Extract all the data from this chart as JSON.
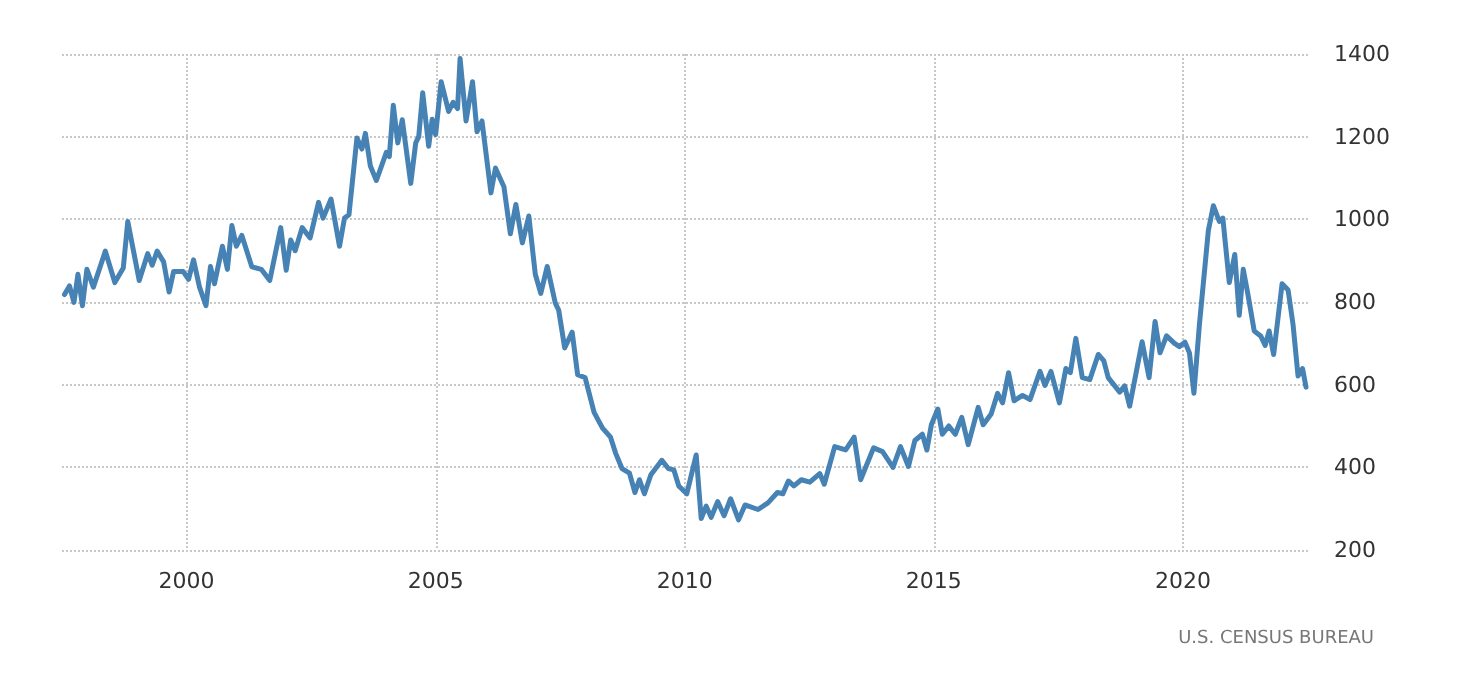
{
  "chart_data": {
    "type": "line",
    "annotations": [
      "U.S. CENSUS BUREAU"
    ],
    "xlim": [
      1997.5,
      2022.55
    ],
    "xticks": [
      2000,
      2005,
      2010,
      2015,
      2020
    ],
    "ylim": [
      200,
      1400
    ],
    "yticks": [
      200,
      400,
      600,
      800,
      1000,
      1200,
      1400
    ],
    "grid": true,
    "marker": "none",
    "line_style": "solid",
    "series": [
      {
        "color": "#4682b4",
        "x": [
          1997.55,
          1997.65,
          1997.74,
          1997.82,
          1997.91,
          1998.0,
          1998.13,
          1998.37,
          1998.56,
          1998.73,
          1998.82,
          1999.05,
          1999.22,
          1999.31,
          1999.41,
          1999.54,
          1999.65,
          1999.74,
          1999.93,
          2000.04,
          2000.14,
          2000.26,
          2000.39,
          2000.48,
          2000.56,
          2000.72,
          2000.82,
          2000.91,
          2001.0,
          2001.11,
          2001.31,
          2001.5,
          2001.67,
          2001.89,
          2002.0,
          2002.09,
          2002.18,
          2002.32,
          2002.48,
          2002.65,
          2002.74,
          2002.9,
          2003.07,
          2003.17,
          2003.26,
          2003.42,
          2003.52,
          2003.59,
          2003.69,
          2003.81,
          2004.01,
          2004.07,
          2004.15,
          2004.24,
          2004.33,
          2004.5,
          2004.6,
          2004.66,
          2004.74,
          2004.86,
          2004.93,
          2005.0,
          2005.11,
          2005.26,
          2005.35,
          2005.44,
          2005.49,
          2005.61,
          2005.74,
          2005.83,
          2005.93,
          2006.11,
          2006.2,
          2006.37,
          2006.5,
          2006.61,
          2006.74,
          2006.87,
          2007.0,
          2007.11,
          2007.24,
          2007.4,
          2007.47,
          2007.59,
          2007.74,
          2007.85,
          2008.0,
          2008.18,
          2008.35,
          2008.51,
          2008.61,
          2008.74,
          2008.89,
          2009.0,
          2009.09,
          2009.19,
          2009.32,
          2009.54,
          2009.67,
          2009.78,
          2009.88,
          2010.04,
          2010.23,
          2010.33,
          2010.43,
          2010.53,
          2010.66,
          2010.79,
          2010.92,
          2011.08,
          2011.21,
          2011.47,
          2011.67,
          2011.86,
          2011.97,
          2012.08,
          2012.19,
          2012.34,
          2012.51,
          2012.71,
          2012.8,
          2013.01,
          2013.23,
          2013.4,
          2013.53,
          2013.79,
          2013.97,
          2014.18,
          2014.33,
          2014.49,
          2014.62,
          2014.77,
          2014.86,
          2014.95,
          2015.08,
          2015.17,
          2015.3,
          2015.43,
          2015.56,
          2015.69,
          2015.89,
          2015.99,
          2016.15,
          2016.28,
          2016.38,
          2016.5,
          2016.61,
          2016.78,
          2016.93,
          2017.13,
          2017.23,
          2017.35,
          2017.52,
          2017.65,
          2017.74,
          2017.85,
          2017.98,
          2018.13,
          2018.3,
          2018.41,
          2018.5,
          2018.73,
          2018.83,
          2018.93,
          2019.18,
          2019.32,
          2019.44,
          2019.54,
          2019.67,
          2019.83,
          2019.93,
          2020.04,
          2020.13,
          2020.22,
          2020.33,
          2020.51,
          2020.61,
          2020.73,
          2020.8,
          2020.93,
          2021.04,
          2021.13,
          2021.21,
          2021.3,
          2021.43,
          2021.56,
          2021.65,
          2021.73,
          2021.82,
          2021.99,
          2022.11,
          2022.21,
          2022.31,
          2022.4,
          2022.47
        ],
        "values": [
          818,
          839,
          799,
          867,
          791,
          879,
          836,
          923,
          847,
          882,
          995,
          852,
          917,
          889,
          923,
          897,
          824,
          874,
          874,
          855,
          902,
          836,
          791,
          886,
          844,
          935,
          879,
          985,
          935,
          961,
          885,
          879,
          852,
          980,
          877,
          950,
          924,
          980,
          955,
          1041,
          1003,
          1049,
          935,
          1003,
          1011,
          1197,
          1170,
          1208,
          1129,
          1094,
          1162,
          1152,
          1276,
          1185,
          1241,
          1087,
          1185,
          1200,
          1306,
          1177,
          1242,
          1205,
          1333,
          1261,
          1283,
          1268,
          1389,
          1238,
          1333,
          1212,
          1238,
          1064,
          1124,
          1079,
          965,
          1036,
          943,
          1008,
          867,
          821,
          886,
          798,
          780,
          689,
          727,
          624,
          617,
          533,
          495,
          473,
          435,
          397,
          386,
          339,
          370,
          336,
          382,
          417,
          397,
          394,
          355,
          336,
          430,
          276,
          306,
          279,
          317,
          283,
          324,
          273,
          309,
          298,
          314,
          339,
          336,
          367,
          355,
          370,
          364,
          385,
          359,
          450,
          442,
          473,
          370,
          447,
          438,
          400,
          450,
          402,
          465,
          480,
          442,
          503,
          541,
          480,
          500,
          480,
          521,
          455,
          545,
          503,
          529,
          579,
          556,
          629,
          561,
          574,
          564,
          632,
          598,
          632,
          556,
          639,
          629,
          712,
          617,
          612,
          673,
          658,
          617,
          582,
          597,
          548,
          704,
          617,
          753,
          677,
          718,
          700,
          692,
          703,
          677,
          579,
          745,
          973,
          1033,
          995,
          1003,
          847,
          915,
          768,
          879,
          821,
          730,
          718,
          695,
          730,
          673,
          844,
          829,
          745,
          621,
          639,
          594
        ]
      }
    ]
  }
}
